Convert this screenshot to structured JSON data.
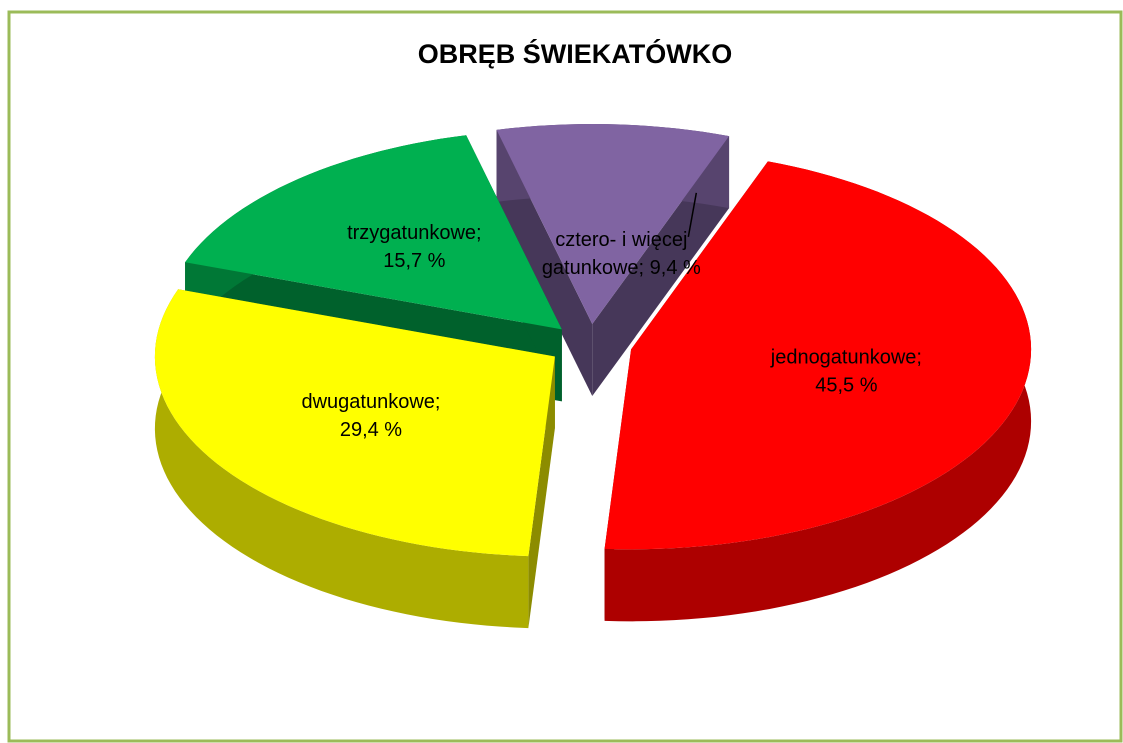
{
  "chart_data": {
    "type": "pie3d",
    "title": "OBRĘB ŚWIEKATÓWKO",
    "series": [
      {
        "color": "#ff0000",
        "values": [
          45.5
        ],
        "value_labels": [
          [
            "jednogatunkowe;",
            "45,5 %"
          ]
        ]
      },
      {
        "color": "#ffff00",
        "values": [
          29.4
        ],
        "value_labels": [
          [
            "dwugatunkowe;",
            "29,4 %"
          ]
        ]
      },
      {
        "color": "#00b050",
        "values": [
          15.7
        ],
        "value_labels": [
          [
            "trzygatunkowe;",
            "15,7 %"
          ]
        ]
      },
      {
        "color": "#8064a2",
        "values": [
          9.4
        ],
        "value_labels": [
          [
            "cztero- i więcej",
            "gatunkowe; 9,4 %"
          ]
        ]
      }
    ]
  }
}
